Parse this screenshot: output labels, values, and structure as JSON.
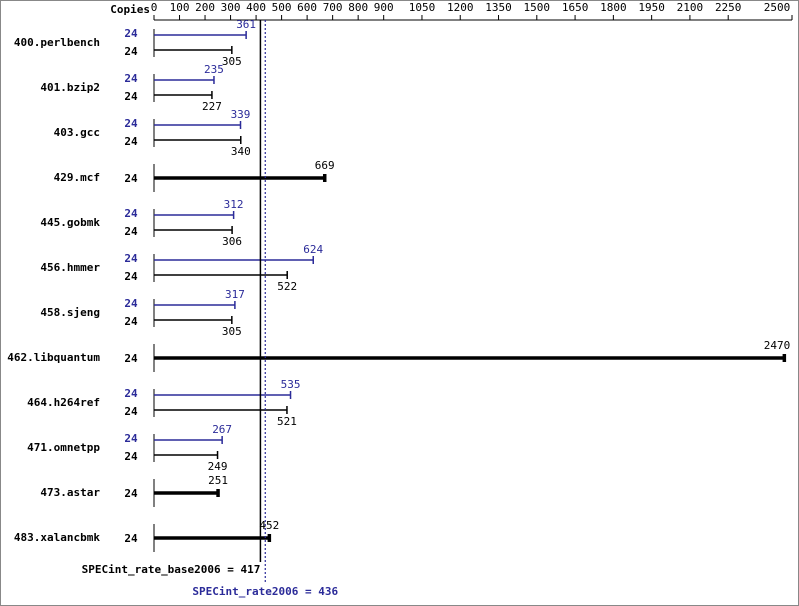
{
  "chart_data": {
    "type": "bar",
    "orientation": "horizontal",
    "copies_header": "Copies",
    "categories": [
      "400.perlbench",
      "401.bzip2",
      "403.gcc",
      "429.mcf",
      "445.gobmk",
      "456.hmmer",
      "458.sjeng",
      "462.libquantum",
      "464.h264ref",
      "471.omnetpp",
      "473.astar",
      "483.xalancbmk"
    ],
    "copies": {
      "peak": [
        24,
        24,
        24,
        null,
        24,
        24,
        24,
        null,
        24,
        24,
        null,
        null
      ],
      "base": [
        24,
        24,
        24,
        24,
        24,
        24,
        24,
        24,
        24,
        24,
        24,
        24
      ]
    },
    "series": [
      {
        "color": "#2b2b99",
        "values": [
          361,
          235,
          339,
          null,
          312,
          624,
          317,
          null,
          535,
          267,
          null,
          null
        ]
      },
      {
        "color": "#000000",
        "values": [
          305,
          227,
          340,
          669,
          306,
          522,
          305,
          2470,
          521,
          249,
          251,
          452
        ]
      }
    ],
    "xlim": [
      0,
      2500
    ],
    "xticks": [
      0,
      100,
      200,
      300,
      400,
      500,
      600,
      700,
      800,
      900,
      1050,
      1200,
      1350,
      1500,
      1650,
      1800,
      1950,
      2100,
      2250,
      2500
    ],
    "reference_lines": [
      {
        "label": "SPECint_rate_base2006 = 417",
        "value": 417,
        "color": "#000000",
        "style": "solid"
      },
      {
        "label": "SPECint_rate2006 = 436",
        "value": 436,
        "color": "#2b2b99",
        "style": "dotted"
      }
    ]
  }
}
